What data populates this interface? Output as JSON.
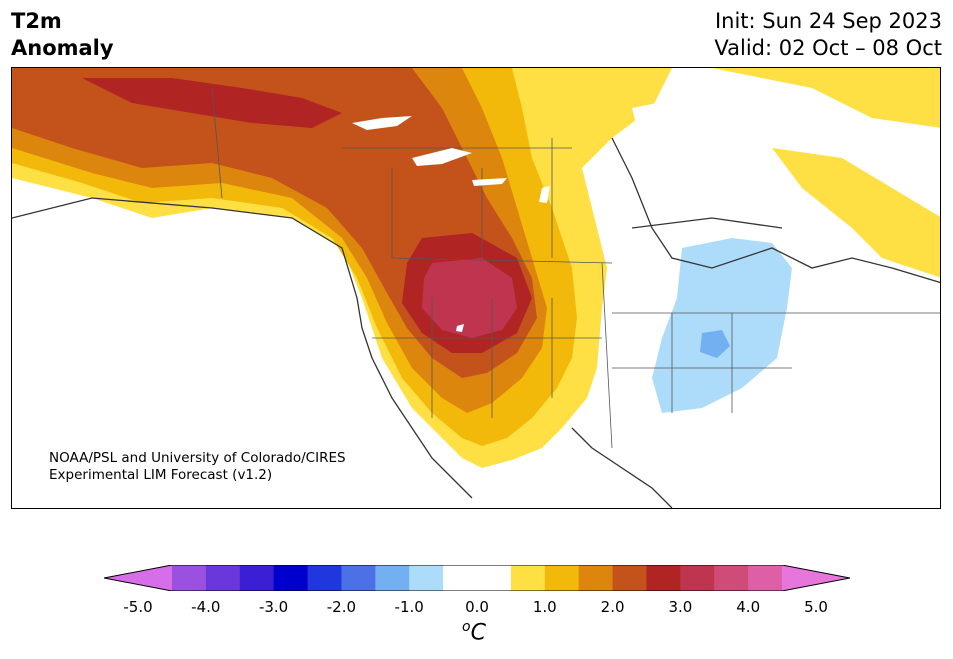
{
  "header": {
    "title_line1": "T2m",
    "title_line2": "Anomaly",
    "init_text": "Init: Sun 24 Sep 2023",
    "valid_text": "Valid: 02 Oct – 08 Oct"
  },
  "credit": {
    "line1": "NOAA/PSL and University of Colorado/CIRES",
    "line2": "Experimental LIM Forecast (v1.2)"
  },
  "colorbar": {
    "colors": [
      "#d76ee9",
      "#9a51e0",
      "#6a37dd",
      "#3a1fd5",
      "#0000cd",
      "#2137de",
      "#4c70e6",
      "#73b0f2",
      "#addcfb",
      "#ffffff",
      "#ffffff",
      "#fee045",
      "#f2b90b",
      "#dd860e",
      "#c3531a",
      "#b02424",
      "#bf3550",
      "#cf4b78",
      "#dd60a6",
      "#e676db"
    ],
    "tick_labels": [
      "-5.0",
      "-4.0",
      "-3.0",
      "-2.0",
      "-1.0",
      "0.0",
      "1.0",
      "2.0",
      "3.0",
      "4.0",
      "5.0"
    ],
    "unit_label": "C",
    "unit_superscript": "o"
  }
}
